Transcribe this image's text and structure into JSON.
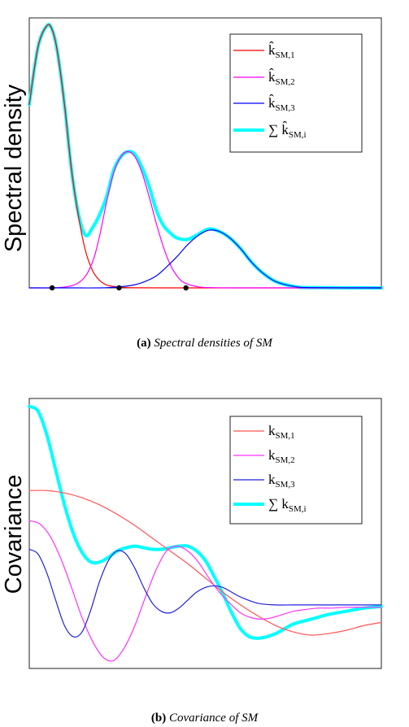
{
  "chart_data": [
    {
      "type": "line",
      "ylabel": "Spectral density",
      "caption_label": "(a)",
      "caption_text": "Spectral densities of SM",
      "xlim": [
        0,
        10
      ],
      "ylim": [
        0,
        1.03
      ],
      "legend_position": "top-right",
      "series": [
        {
          "name": "k̂SM,1",
          "legend_base": "k̂",
          "legend_sub": "SM,1",
          "color": "#ff0000",
          "width": 1.2,
          "x": [
            0,
            0.25,
            0.5,
            0.65,
            0.8,
            1.0,
            1.2,
            1.4,
            1.6,
            1.8,
            2.0,
            2.2,
            2.4,
            2.6,
            3.0,
            4.0,
            6.0,
            8.0,
            10.0
          ],
          "y": [
            0.7,
            0.92,
            1.0,
            0.985,
            0.9,
            0.7,
            0.45,
            0.27,
            0.14,
            0.065,
            0.028,
            0.011,
            0.005,
            0.002,
            0.0004,
            0,
            0,
            0,
            0
          ]
        },
        {
          "name": "k̂SM,2",
          "legend_base": "k̂",
          "legend_sub": "SM,2",
          "color": "#ff00ff",
          "width": 1.2,
          "x": [
            0,
            1.0,
            1.5,
            1.8,
            2.0,
            2.2,
            2.4,
            2.6,
            2.8,
            3.0,
            3.2,
            3.4,
            3.6,
            3.8,
            4.0,
            4.2,
            4.4,
            4.8,
            5.2,
            6.0,
            10.0
          ],
          "y": [
            0,
            0.003,
            0.03,
            0.1,
            0.2,
            0.33,
            0.44,
            0.5,
            0.52,
            0.5,
            0.44,
            0.35,
            0.25,
            0.16,
            0.09,
            0.045,
            0.02,
            0.004,
            0.001,
            0,
            0
          ]
        },
        {
          "name": "k̂SM,3",
          "legend_base": "k̂",
          "legend_sub": "SM,3",
          "color": "#0000ff",
          "width": 1.2,
          "x": [
            0,
            1.0,
            2.0,
            2.5,
            3.0,
            3.3,
            3.6,
            3.9,
            4.2,
            4.5,
            4.8,
            5.1,
            5.4,
            5.7,
            6.0,
            6.3,
            6.6,
            7.0,
            7.5,
            8.0,
            10.0
          ],
          "y": [
            0,
            0,
            0,
            0.003,
            0.012,
            0.025,
            0.045,
            0.08,
            0.12,
            0.165,
            0.2,
            0.22,
            0.215,
            0.19,
            0.15,
            0.1,
            0.06,
            0.024,
            0.006,
            0.001,
            0
          ]
        },
        {
          "name": "∑ k̂SM,i",
          "legend_base": "∑ k̂",
          "legend_sub": "SM,i",
          "color": "#00ffff",
          "width": 4,
          "x": [
            0,
            0.25,
            0.5,
            0.65,
            0.8,
            1.0,
            1.2,
            1.4,
            1.6,
            1.8,
            2.0,
            2.2,
            2.4,
            2.6,
            2.8,
            3.0,
            3.2,
            3.4,
            3.6,
            3.8,
            4.0,
            4.2,
            4.5,
            4.8,
            5.1,
            5.4,
            5.7,
            6.0,
            6.3,
            6.6,
            7.0,
            7.5,
            8.0,
            10.0
          ],
          "y": [
            0.7,
            0.92,
            1.0,
            0.985,
            0.9,
            0.7,
            0.45,
            0.28,
            0.2,
            0.23,
            0.28,
            0.35,
            0.45,
            0.5,
            0.52,
            0.51,
            0.46,
            0.39,
            0.3,
            0.24,
            0.21,
            0.19,
            0.185,
            0.205,
            0.225,
            0.215,
            0.19,
            0.15,
            0.1,
            0.06,
            0.024,
            0.006,
            0.001,
            0
          ]
        }
      ],
      "markers": {
        "x": [
          0.65,
          2.55,
          4.45
        ],
        "y": [
          0,
          0,
          0
        ],
        "color": "#000000"
      }
    },
    {
      "type": "line",
      "ylabel": "Covariance",
      "caption_label": "(b)",
      "caption_text": "Covariance of SM",
      "xlim": [
        0,
        10
      ],
      "ylim": [
        -0.65,
        1.05
      ],
      "legend_position": "top-right",
      "series": [
        {
          "name": "kSM,1",
          "legend_base": "k",
          "legend_sub": "SM,1",
          "color": "#ff5555",
          "width": 1.2,
          "x": [
            0,
            0.5,
            1.0,
            1.5,
            2.0,
            2.5,
            3.0,
            3.5,
            4.0,
            4.5,
            5.0,
            5.5,
            6.0,
            6.5,
            7.0,
            7.5,
            8.0,
            8.5,
            9.0,
            9.5,
            10.0
          ],
          "y": [
            0.47,
            0.47,
            0.455,
            0.425,
            0.38,
            0.32,
            0.25,
            0.17,
            0.09,
            0.01,
            -0.08,
            -0.17,
            -0.25,
            -0.32,
            -0.38,
            -0.42,
            -0.44,
            -0.43,
            -0.41,
            -0.38,
            -0.36
          ]
        },
        {
          "name": "kSM,2",
          "legend_base": "k",
          "legend_sub": "SM,2",
          "color": "#ff33ff",
          "width": 1.2,
          "x": [
            0,
            0.3,
            0.6,
            0.9,
            1.2,
            1.5,
            1.8,
            2.1,
            2.4,
            2.7,
            3.0,
            3.3,
            3.6,
            3.9,
            4.2,
            4.5,
            4.8,
            5.1,
            5.4,
            5.7,
            6.0,
            6.3,
            6.6,
            6.9,
            7.2,
            7.5,
            7.8,
            8.2,
            8.6,
            9.0,
            9.5,
            10.0
          ],
          "y": [
            0.28,
            0.26,
            0.18,
            0.04,
            -0.14,
            -0.33,
            -0.48,
            -0.58,
            -0.6,
            -0.52,
            -0.38,
            -0.2,
            -0.03,
            0.09,
            0.12,
            0.09,
            0.02,
            -0.08,
            -0.17,
            -0.24,
            -0.3,
            -0.33,
            -0.34,
            -0.33,
            -0.31,
            -0.29,
            -0.28,
            -0.27,
            -0.27,
            -0.265,
            -0.265,
            -0.265
          ]
        },
        {
          "name": "kSM,3",
          "legend_base": "k",
          "legend_sub": "SM,3",
          "color": "#2222dd",
          "width": 1.2,
          "x": [
            0,
            0.25,
            0.5,
            0.75,
            1.0,
            1.25,
            1.5,
            1.75,
            2.0,
            2.25,
            2.5,
            2.75,
            3.0,
            3.25,
            3.5,
            3.75,
            4.0,
            4.25,
            4.5,
            4.75,
            5.0,
            5.25,
            5.5,
            5.75,
            6.0,
            6.5,
            7.0,
            7.5,
            8.0,
            9.0,
            10.0
          ],
          "y": [
            0.1,
            0.07,
            -0.05,
            -0.22,
            -0.38,
            -0.45,
            -0.42,
            -0.28,
            -0.1,
            0.03,
            0.09,
            0.07,
            -0.02,
            -0.14,
            -0.24,
            -0.29,
            -0.3,
            -0.27,
            -0.22,
            -0.17,
            -0.14,
            -0.13,
            -0.14,
            -0.17,
            -0.2,
            -0.24,
            -0.25,
            -0.25,
            -0.25,
            -0.25,
            -0.25
          ]
        },
        {
          "name": "∑ kSM,i",
          "legend_base": "∑ k",
          "legend_sub": "SM,i",
          "color": "#00ffff",
          "width": 4,
          "x": [
            0,
            0.25,
            0.5,
            0.75,
            1.0,
            1.25,
            1.5,
            1.75,
            2.0,
            2.25,
            2.5,
            2.75,
            3.0,
            3.25,
            3.5,
            3.75,
            4.0,
            4.25,
            4.5,
            4.75,
            5.0,
            5.25,
            5.5,
            5.75,
            6.0,
            6.25,
            6.5,
            6.75,
            7.0,
            7.25,
            7.5,
            8.0,
            8.5,
            9.0,
            9.5,
            10.0
          ],
          "y": [
            1.0,
            0.97,
            0.82,
            0.6,
            0.38,
            0.2,
            0.08,
            0.02,
            0.02,
            0.05,
            0.09,
            0.11,
            0.12,
            0.11,
            0.1,
            0.1,
            0.11,
            0.12,
            0.12,
            0.09,
            0.03,
            -0.07,
            -0.18,
            -0.3,
            -0.4,
            -0.45,
            -0.46,
            -0.45,
            -0.43,
            -0.4,
            -0.37,
            -0.34,
            -0.31,
            -0.29,
            -0.27,
            -0.26
          ]
        }
      ]
    }
  ]
}
